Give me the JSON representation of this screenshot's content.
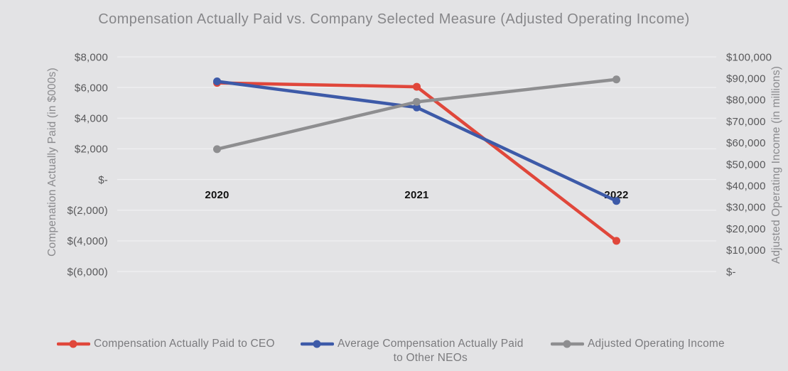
{
  "title": "Compensation Actually Paid vs. Company Selected Measure (Adjusted Operating Income)",
  "chart_data": {
    "type": "line",
    "categories": [
      "2020",
      "2021",
      "2022"
    ],
    "series": [
      {
        "name": "Compensation Actually Paid to CEO",
        "axis": "left",
        "color": "#E0473B",
        "values": [
          6300,
          6050,
          -4000
        ]
      },
      {
        "name": "Average Compensation Actually Paid to Other NEOs",
        "axis": "left",
        "color": "#3D5AA8",
        "values": [
          6400,
          4700,
          -1400
        ]
      },
      {
        "name": "Adjusted Operating Income",
        "axis": "right",
        "color": "#8E8E90",
        "values": [
          57000,
          79000,
          89500
        ]
      }
    ],
    "left_axis": {
      "title": "Compenation Actually Paid (in $000s)",
      "min": -6000,
      "max": 8000,
      "major_unit": 2000,
      "tick_labels": [
        "$8,000",
        "$6,000",
        "$4,000",
        "$2,000",
        "$-",
        "$(2,000)",
        "$(4,000)",
        "$(6,000)"
      ]
    },
    "right_axis": {
      "title": "Adjusted Operating Income (in millions)",
      "min": 0,
      "max": 100000,
      "major_unit": 10000,
      "tick_labels": [
        "$100,000",
        "$90,000",
        "$80,000",
        "$70,000",
        "$60,000",
        "$50,000",
        "$40,000",
        "$30,000",
        "$20,000",
        "$10,000",
        "$-"
      ]
    },
    "grid": true,
    "legend_position": "bottom"
  },
  "legend": {
    "items": [
      {
        "label": "Compensation Actually Paid to CEO"
      },
      {
        "label": "Average Compensation Actually Paid\nto Other NEOs"
      },
      {
        "label": "Adjusted Operating Income"
      }
    ]
  },
  "colors": {
    "background": "#E3E3E5",
    "gridline": "#F0F0F2",
    "tick_label": "#58585A",
    "category_label": "#111111",
    "axis_title": "#8A8A8D",
    "title": "#87878A"
  }
}
